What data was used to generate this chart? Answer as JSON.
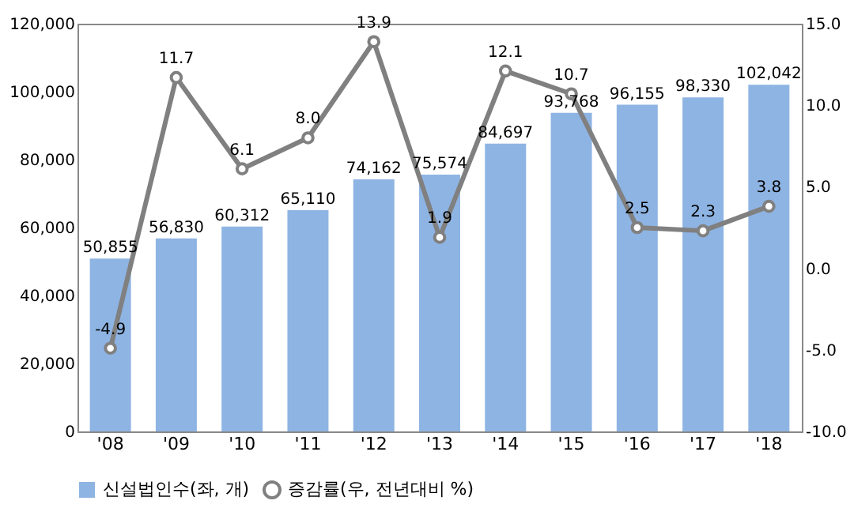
{
  "chart_data": {
    "type": "bar",
    "categories": [
      "'08",
      "'09",
      "'10",
      "'11",
      "'12",
      "'13",
      "'14",
      "'15",
      "'16",
      "'17",
      "'18"
    ],
    "series": [
      {
        "name": "신설법인수(좌, 개)",
        "color": "#8eb4e3",
        "values": [
          50855,
          56830,
          60312,
          65110,
          74162,
          75574,
          84697,
          93768,
          96155,
          98330,
          102042
        ],
        "value_labels": [
          "50,855",
          "56,830",
          "60,312",
          "65,110",
          "74,162",
          "75,574",
          "84,697",
          "93,768",
          "96,155",
          "98,330",
          "102,042"
        ]
      },
      {
        "name": "증감률(우, 전년대비 %)",
        "type": "line",
        "axis": "y2",
        "color": "#808080",
        "marker": "circle",
        "line_style": "solid",
        "values": [
          -4.9,
          11.7,
          6.1,
          8.0,
          13.9,
          1.9,
          12.1,
          10.7,
          2.5,
          2.3,
          3.8
        ],
        "value_labels": [
          "-4.9",
          "11.7",
          "6.1",
          "8.0",
          "13.9",
          "1.9",
          "12.1",
          "10.7",
          "2.5",
          "2.3",
          "3.8"
        ]
      }
    ],
    "ylim": [
      0,
      120000
    ],
    "yticks": [
      0,
      {
        "value": 20000,
        "label": "20,000"
      },
      {
        "value": 40000,
        "label": "40,000"
      },
      {
        "value": 60000,
        "label": "60,000"
      },
      {
        "value": 80000,
        "label": "80,000"
      },
      {
        "value": 100000,
        "label": "100,000"
      },
      {
        "value": 120000,
        "label": "120,000"
      }
    ],
    "y2lim": [
      -10,
      15
    ],
    "y2ticks": [
      {
        "value": -10,
        "label": "-10.0"
      },
      {
        "value": -5,
        "label": "-5.0"
      },
      {
        "value": 0,
        "label": "0.0"
      },
      {
        "value": 5,
        "label": "5.0"
      },
      {
        "value": 10,
        "label": "10.0"
      },
      {
        "value": 15,
        "label": "15.0"
      }
    ],
    "grid": false,
    "legend": "bottom"
  }
}
